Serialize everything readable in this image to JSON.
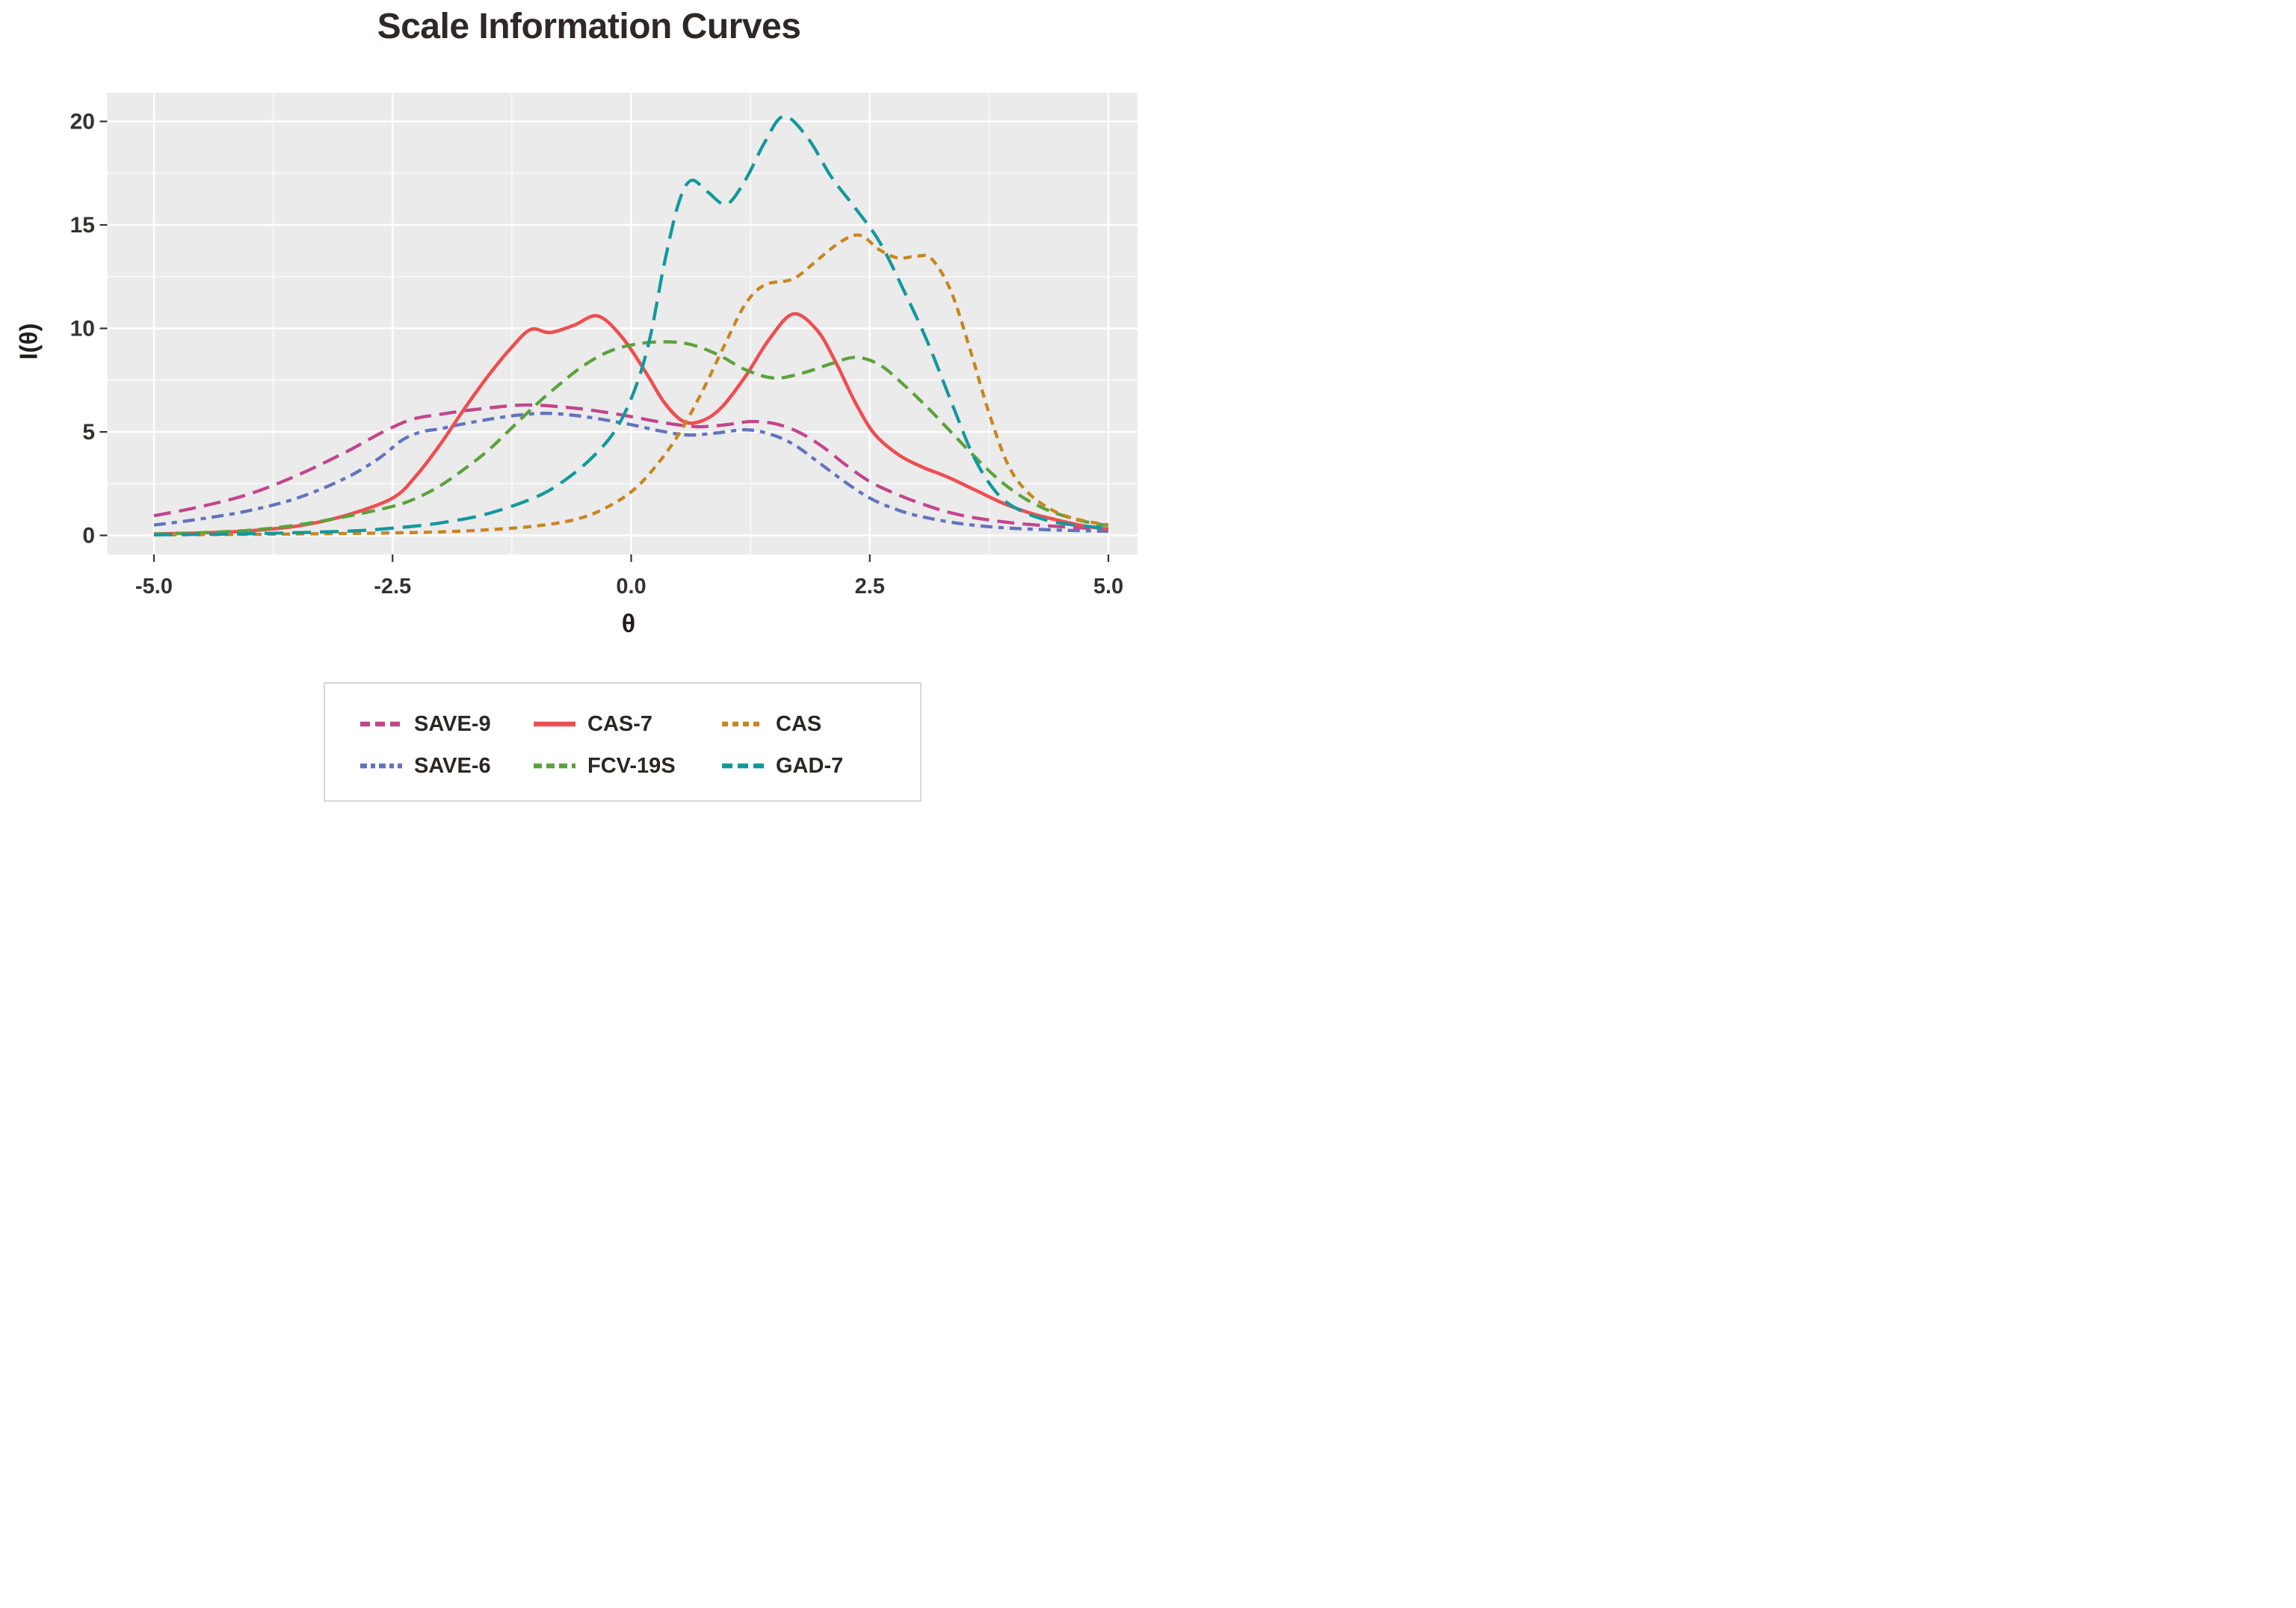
{
  "title": "Scale Information Curves",
  "axes": {
    "x_label": "θ",
    "y_label": "I(θ)",
    "x_ticks": [
      {
        "value": -5,
        "label": "-5.0"
      },
      {
        "value": -2.5,
        "label": "-2.5"
      },
      {
        "value": 0,
        "label": "0.0"
      },
      {
        "value": 2.5,
        "label": "2.5"
      },
      {
        "value": 5,
        "label": "5.0"
      }
    ],
    "y_ticks": [
      {
        "value": 0,
        "label": "0"
      },
      {
        "value": 5,
        "label": "5"
      },
      {
        "value": 10,
        "label": "10"
      },
      {
        "value": 15,
        "label": "15"
      },
      {
        "value": 20,
        "label": "20"
      }
    ],
    "x_minor": [
      -3.75,
      -1.25,
      1.25,
      3.75
    ],
    "y_minor": [
      2.5,
      7.5,
      12.5,
      17.5
    ]
  },
  "panel": {
    "bg": "#EBEBEB",
    "grid_color": "#FFFFFF",
    "tick_color": "#333333",
    "label_color": "#35312e"
  },
  "chart_data": {
    "type": "line",
    "title": "Scale Information Curves",
    "xlabel": "θ",
    "ylabel": "I(θ)",
    "xlim": [
      -5,
      5
    ],
    "ylim": [
      0,
      20.3
    ],
    "grid": "on",
    "legend_position": "bottom",
    "series": [
      {
        "name": "SAVE-9",
        "color": "#C2458C",
        "dash": "23 11",
        "legend_dash": "13 7",
        "width": 4.3,
        "points": [
          [
            -5,
            0.95
          ],
          [
            -4.5,
            1.4
          ],
          [
            -4,
            2.0
          ],
          [
            -3.5,
            2.9
          ],
          [
            -3,
            4.0
          ],
          [
            -2.6,
            5.0
          ],
          [
            -2.3,
            5.6
          ],
          [
            -2,
            5.85
          ],
          [
            -1.6,
            6.1
          ],
          [
            -1.1,
            6.3
          ],
          [
            -0.6,
            6.15
          ],
          [
            -0.2,
            5.9
          ],
          [
            0.1,
            5.65
          ],
          [
            0.4,
            5.4
          ],
          [
            0.7,
            5.25
          ],
          [
            1,
            5.35
          ],
          [
            1.25,
            5.5
          ],
          [
            1.5,
            5.4
          ],
          [
            1.75,
            5.0
          ],
          [
            2,
            4.3
          ],
          [
            2.25,
            3.4
          ],
          [
            2.5,
            2.6
          ],
          [
            2.75,
            2.05
          ],
          [
            3,
            1.6
          ],
          [
            3.3,
            1.15
          ],
          [
            3.6,
            0.85
          ],
          [
            4,
            0.6
          ],
          [
            4.4,
            0.45
          ],
          [
            4.7,
            0.37
          ],
          [
            5,
            0.3
          ]
        ]
      },
      {
        "name": "SAVE-6",
        "color": "#6273BE",
        "dash": "16 8 7 8",
        "legend_dash": "9 5 6 5",
        "width": 4.3,
        "points": [
          [
            -5,
            0.5
          ],
          [
            -4.5,
            0.8
          ],
          [
            -4,
            1.2
          ],
          [
            -3.5,
            1.8
          ],
          [
            -3,
            2.75
          ],
          [
            -2.65,
            3.7
          ],
          [
            -2.4,
            4.6
          ],
          [
            -2.2,
            5.0
          ],
          [
            -2,
            5.15
          ],
          [
            -1.8,
            5.35
          ],
          [
            -1.5,
            5.6
          ],
          [
            -1.2,
            5.8
          ],
          [
            -0.9,
            5.9
          ],
          [
            -0.6,
            5.8
          ],
          [
            -0.3,
            5.6
          ],
          [
            0,
            5.35
          ],
          [
            0.3,
            5.05
          ],
          [
            0.6,
            4.85
          ],
          [
            0.9,
            4.95
          ],
          [
            1.2,
            5.1
          ],
          [
            1.45,
            4.9
          ],
          [
            1.7,
            4.4
          ],
          [
            2,
            3.4
          ],
          [
            2.25,
            2.55
          ],
          [
            2.5,
            1.8
          ],
          [
            2.75,
            1.3
          ],
          [
            3,
            0.95
          ],
          [
            3.4,
            0.6
          ],
          [
            3.8,
            0.4
          ],
          [
            4.2,
            0.3
          ],
          [
            4.6,
            0.24
          ],
          [
            5,
            0.2
          ]
        ]
      },
      {
        "name": "CAS-7",
        "color": "#EE4E52",
        "dash": "",
        "legend_dash": "",
        "width": 4.6,
        "points": [
          [
            -5,
            0.07
          ],
          [
            -4.5,
            0.12
          ],
          [
            -4,
            0.22
          ],
          [
            -3.5,
            0.45
          ],
          [
            -3,
            0.95
          ],
          [
            -2.5,
            1.8
          ],
          [
            -2.25,
            2.9
          ],
          [
            -2,
            4.4
          ],
          [
            -1.75,
            6.1
          ],
          [
            -1.5,
            7.7
          ],
          [
            -1.25,
            9.1
          ],
          [
            -1.05,
            9.95
          ],
          [
            -0.85,
            9.8
          ],
          [
            -0.6,
            10.15
          ],
          [
            -0.35,
            10.6
          ],
          [
            -0.1,
            9.6
          ],
          [
            0.15,
            7.9
          ],
          [
            0.35,
            6.4
          ],
          [
            0.55,
            5.5
          ],
          [
            0.75,
            5.55
          ],
          [
            0.95,
            6.2
          ],
          [
            1.2,
            7.7
          ],
          [
            1.45,
            9.5
          ],
          [
            1.7,
            10.7
          ],
          [
            1.95,
            9.9
          ],
          [
            2.15,
            8.3
          ],
          [
            2.35,
            6.4
          ],
          [
            2.55,
            4.9
          ],
          [
            2.8,
            3.9
          ],
          [
            3.05,
            3.3
          ],
          [
            3.3,
            2.85
          ],
          [
            3.6,
            2.2
          ],
          [
            3.9,
            1.55
          ],
          [
            4.2,
            1.05
          ],
          [
            4.5,
            0.7
          ],
          [
            4.75,
            0.45
          ],
          [
            5,
            0.3
          ]
        ]
      },
      {
        "name": "FCV-19S",
        "color": "#5CA23C",
        "dash": "18 10",
        "legend_dash": "11 6",
        "width": 4.3,
        "points": [
          [
            -5,
            0.06
          ],
          [
            -4.5,
            0.13
          ],
          [
            -4,
            0.25
          ],
          [
            -3.5,
            0.5
          ],
          [
            -3,
            0.9
          ],
          [
            -2.5,
            1.4
          ],
          [
            -2.25,
            1.8
          ],
          [
            -2,
            2.4
          ],
          [
            -1.75,
            3.2
          ],
          [
            -1.5,
            4.1
          ],
          [
            -1.25,
            5.2
          ],
          [
            -1,
            6.3
          ],
          [
            -0.75,
            7.3
          ],
          [
            -0.5,
            8.2
          ],
          [
            -0.25,
            8.85
          ],
          [
            0,
            9.2
          ],
          [
            0.3,
            9.35
          ],
          [
            0.6,
            9.25
          ],
          [
            0.9,
            8.75
          ],
          [
            1.2,
            8.0
          ],
          [
            1.5,
            7.6
          ],
          [
            1.8,
            7.85
          ],
          [
            2.1,
            8.3
          ],
          [
            2.35,
            8.6
          ],
          [
            2.6,
            8.25
          ],
          [
            2.85,
            7.3
          ],
          [
            3.1,
            6.2
          ],
          [
            3.35,
            5.0
          ],
          [
            3.6,
            3.8
          ],
          [
            3.85,
            2.7
          ],
          [
            4.1,
            1.85
          ],
          [
            4.35,
            1.25
          ],
          [
            4.6,
            0.85
          ],
          [
            4.8,
            0.62
          ],
          [
            5,
            0.48
          ]
        ]
      },
      {
        "name": "CAS",
        "color": "#C8861F",
        "dash": "11 8",
        "legend_dash": "8 6",
        "width": 4.3,
        "points": [
          [
            -5,
            0.03
          ],
          [
            -4,
            0.05
          ],
          [
            -3,
            0.09
          ],
          [
            -2.5,
            0.12
          ],
          [
            -2,
            0.17
          ],
          [
            -1.5,
            0.27
          ],
          [
            -1,
            0.45
          ],
          [
            -0.6,
            0.75
          ],
          [
            -0.3,
            1.25
          ],
          [
            0,
            2.1
          ],
          [
            0.25,
            3.3
          ],
          [
            0.5,
            4.9
          ],
          [
            0.75,
            7.0
          ],
          [
            1,
            9.4
          ],
          [
            1.2,
            11.2
          ],
          [
            1.4,
            12.1
          ],
          [
            1.7,
            12.4
          ],
          [
            1.95,
            13.3
          ],
          [
            2.2,
            14.2
          ],
          [
            2.4,
            14.5
          ],
          [
            2.6,
            13.8
          ],
          [
            2.8,
            13.4
          ],
          [
            3,
            13.5
          ],
          [
            3.15,
            13.35
          ],
          [
            3.35,
            11.8
          ],
          [
            3.55,
            9.0
          ],
          [
            3.75,
            5.9
          ],
          [
            3.95,
            3.4
          ],
          [
            4.15,
            2.1
          ],
          [
            4.4,
            1.25
          ],
          [
            4.65,
            0.8
          ],
          [
            5,
            0.5
          ]
        ]
      },
      {
        "name": "GAD-7",
        "color": "#12999C",
        "dash": "25 12",
        "legend_dash": "14 7",
        "width": 4.3,
        "points": [
          [
            -5,
            0.03
          ],
          [
            -4,
            0.08
          ],
          [
            -3,
            0.2
          ],
          [
            -2.5,
            0.35
          ],
          [
            -2,
            0.6
          ],
          [
            -1.5,
            1.05
          ],
          [
            -1,
            1.85
          ],
          [
            -0.7,
            2.65
          ],
          [
            -0.4,
            3.8
          ],
          [
            -0.15,
            5.2
          ],
          [
            0.05,
            7.2
          ],
          [
            0.2,
            9.6
          ],
          [
            0.35,
            13.2
          ],
          [
            0.5,
            16.1
          ],
          [
            0.63,
            17.15
          ],
          [
            0.8,
            16.6
          ],
          [
            1,
            16.0
          ],
          [
            1.2,
            17.2
          ],
          [
            1.4,
            19.0
          ],
          [
            1.6,
            20.25
          ],
          [
            1.85,
            19.2
          ],
          [
            2.1,
            17.3
          ],
          [
            2.35,
            15.8
          ],
          [
            2.6,
            14.2
          ],
          [
            2.85,
            11.9
          ],
          [
            3.1,
            9.4
          ],
          [
            3.35,
            6.5
          ],
          [
            3.6,
            3.7
          ],
          [
            3.85,
            1.95
          ],
          [
            4.1,
            1.15
          ],
          [
            4.4,
            0.68
          ],
          [
            4.7,
            0.47
          ],
          [
            5,
            0.35
          ]
        ]
      }
    ]
  },
  "legend": {
    "order": [
      "SAVE-9",
      "SAVE-6",
      "CAS-7",
      "FCV-19S",
      "CAS",
      "GAD-7"
    ]
  }
}
